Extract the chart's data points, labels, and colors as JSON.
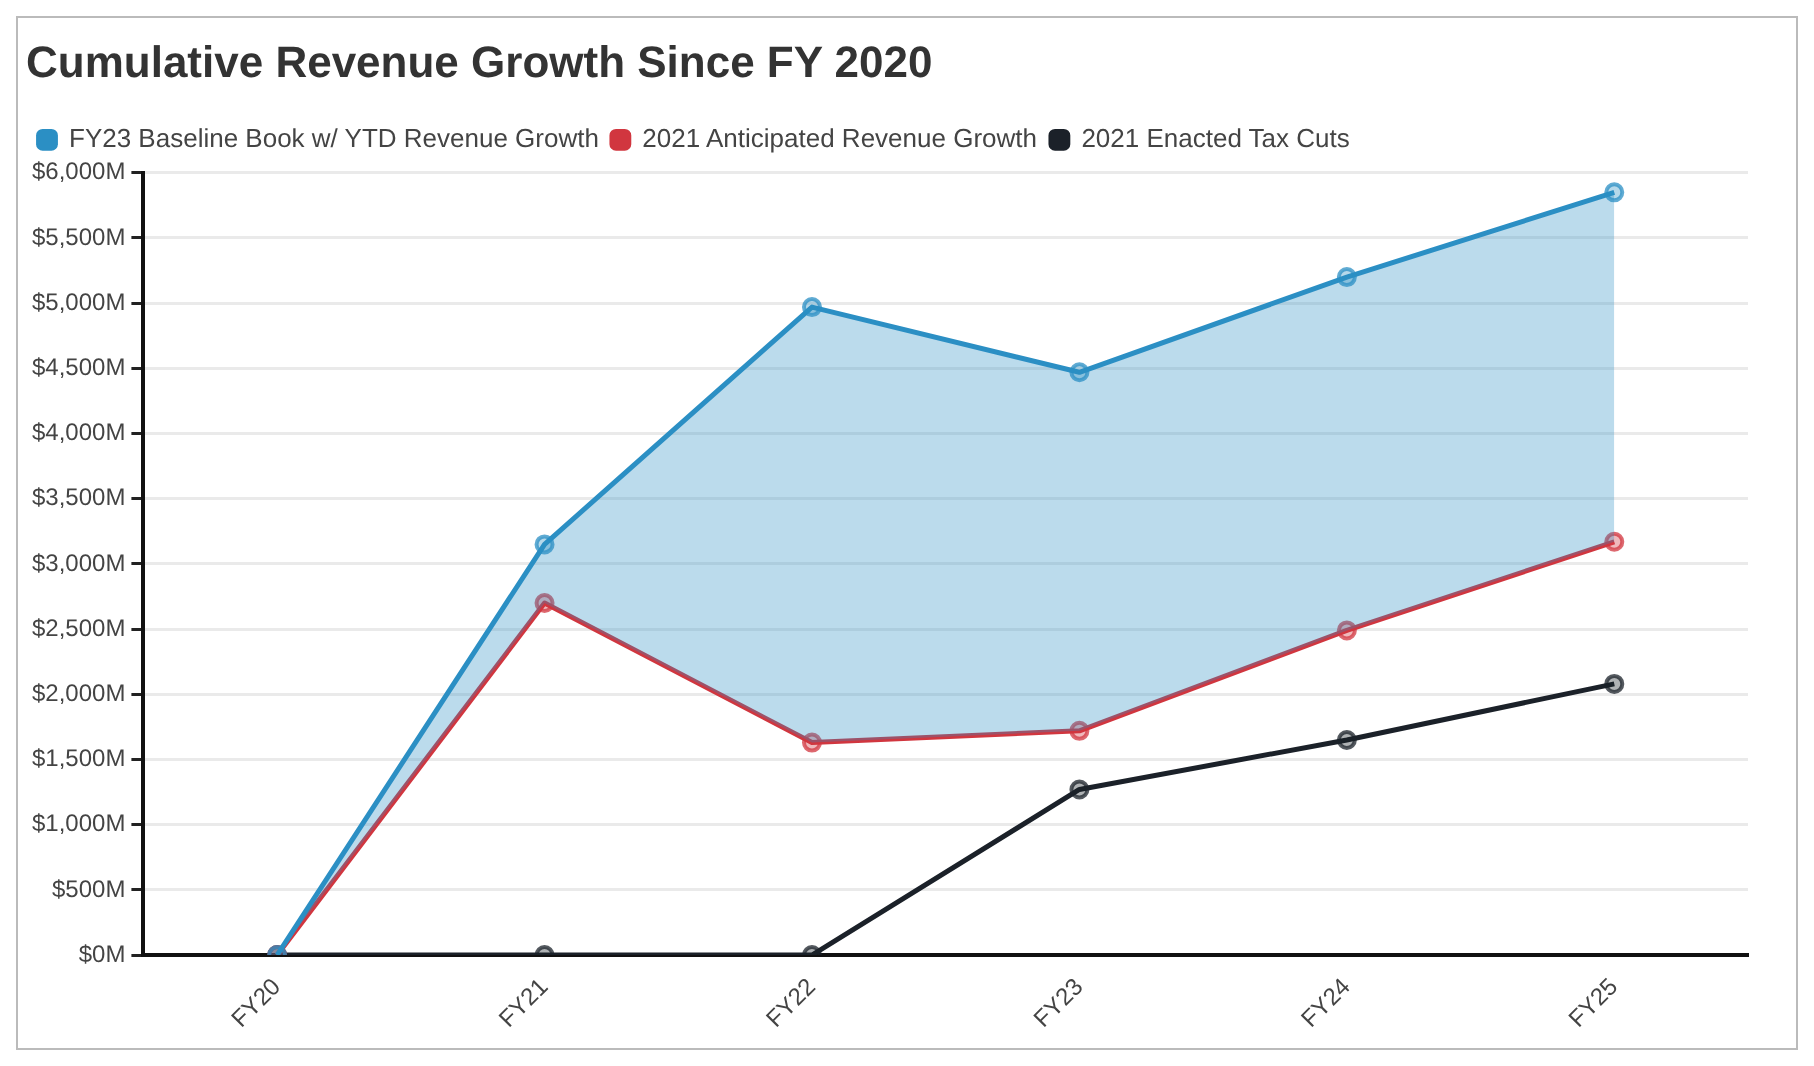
{
  "chart_data": {
    "type": "line",
    "title": "Cumulative Revenue Growth Since FY 2020",
    "categories": [
      "FY20",
      "FY21",
      "FY22",
      "FY23",
      "FY24",
      "FY25"
    ],
    "series": [
      {
        "name": "FY23 Baseline Book w/ YTD Revenue Growth",
        "type": "area",
        "color": "#2b8fc4",
        "values": [
          0,
          3150,
          4970,
          4470,
          5200,
          5850
        ]
      },
      {
        "name": "2021 Anticipated Revenue Growth",
        "color": "#d1363f",
        "values": [
          0,
          2700,
          1630,
          1720,
          2490,
          3170
        ]
      },
      {
        "name": "2021 Enacted Tax Cuts",
        "color": "#1b2129",
        "values": [
          0,
          0,
          0,
          1270,
          1650,
          2080
        ]
      }
    ],
    "ylim": [
      0,
      6000
    ],
    "yticks": [
      {
        "value": 0,
        "label": "$0M"
      },
      {
        "value": 500,
        "label": "$500M"
      },
      {
        "value": 1000,
        "label": "$1,000M"
      },
      {
        "value": 1500,
        "label": "$1,500M"
      },
      {
        "value": 2000,
        "label": "$2,000M"
      },
      {
        "value": 2500,
        "label": "$2,500M"
      },
      {
        "value": 3000,
        "label": "$3,000M"
      },
      {
        "value": 3500,
        "label": "$3,500M"
      },
      {
        "value": 4000,
        "label": "$4,000M"
      },
      {
        "value": 4500,
        "label": "$4,500M"
      },
      {
        "value": 5000,
        "label": "$5,000M"
      },
      {
        "value": 5500,
        "label": "$5,500M"
      },
      {
        "value": 6000,
        "label": "$6,000M"
      }
    ],
    "grid": "y",
    "legend": "top left",
    "marker": "circle"
  }
}
